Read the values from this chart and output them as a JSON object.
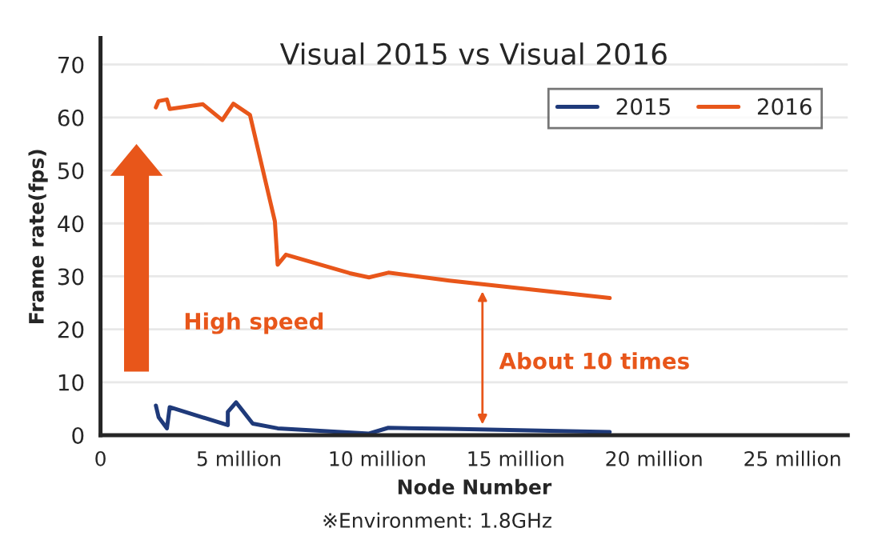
{
  "chart_data": {
    "type": "line",
    "title": "Visual 2015 vs Visual 2016",
    "xlabel": "Node Number",
    "ylabel": "Frame rate(fps)",
    "annotations": [
      "High speed",
      "About 10 times",
      "※Environment: 1.8GHz"
    ],
    "series": [
      {
        "name": "2015",
        "color": "#1f3a7a",
        "x": [
          2000000,
          2100000,
          2400000,
          2500000,
          4600000,
          4600000,
          4900000,
          5500000,
          6400000,
          9700000,
          10400000,
          12600000,
          18400000
        ],
        "values": [
          5.6,
          3.4,
          1.3,
          5.3,
          1.9,
          4.4,
          6.2,
          2.2,
          1.3,
          0.3,
          1.4,
          1.2,
          0.6
        ]
      },
      {
        "name": "2016",
        "color": "#e8561a",
        "x": [
          2000000,
          2100000,
          2400000,
          2500000,
          3700000,
          4400000,
          4800000,
          5400000,
          6300000,
          6400000,
          6700000,
          9000000,
          9700000,
          10400000,
          12600000,
          18400000
        ],
        "values": [
          61.9,
          63.1,
          63.4,
          61.6,
          62.5,
          59.5,
          62.6,
          60.5,
          40.4,
          32.2,
          34.1,
          30.6,
          29.8,
          30.7,
          29.2,
          25.9
        ]
      }
    ],
    "xlim": [
      0,
      27000000
    ],
    "xticks": [
      0,
      {
        "value": 5000000,
        "label": "5 million"
      },
      {
        "value": 10000000,
        "label": "10 million"
      },
      {
        "value": 15000000,
        "label": "15 million"
      },
      {
        "value": 20000000,
        "label": "20 million"
      },
      {
        "value": 25000000,
        "label": "25 million"
      }
    ],
    "ylim": [
      0,
      75
    ],
    "yticks": [
      0,
      10,
      20,
      30,
      40,
      50,
      60,
      70
    ],
    "grid": "y",
    "legend": "top right",
    "marker": "none",
    "line_style": "solid"
  }
}
